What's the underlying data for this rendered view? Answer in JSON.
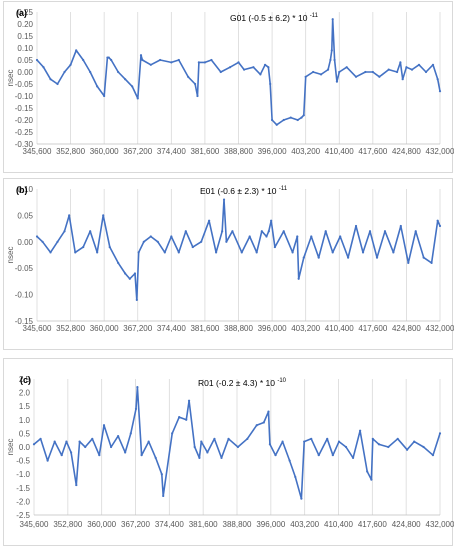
{
  "chart_data": [
    {
      "type": "line",
      "panel_label": "(a)",
      "annotation": {
        "name": "G01",
        "value": "(-0.5 ± 6.2) * 10",
        "exponent": "-11"
      },
      "ylabel": "nsec",
      "ylim": [
        -0.3,
        0.25
      ],
      "yticks": [
        "0.25",
        "0.20",
        "0.15",
        "0.10",
        "0.05",
        "0.00",
        "-0.05",
        "-0.10",
        "-0.15",
        "-0.20",
        "-0.25",
        "-0.30"
      ],
      "ytick_values": [
        0.25,
        0.2,
        0.15,
        0.1,
        0.05,
        0.0,
        -0.05,
        -0.1,
        -0.15,
        -0.2,
        -0.25,
        -0.3
      ],
      "xlim": [
        345600,
        432000
      ],
      "xticks": [
        "345,600",
        "352,800",
        "360,000",
        "367,200",
        "374,400",
        "381,600",
        "388,800",
        "396,000",
        "403,200",
        "410,400",
        "417,600",
        "424,800",
        "432,000"
      ],
      "xtick_values": [
        345600,
        352800,
        360000,
        367200,
        374400,
        381600,
        388800,
        396000,
        403200,
        410400,
        417600,
        424800,
        432000
      ],
      "grid": "vertical",
      "color": "#4472c4",
      "x": [
        345600,
        347000,
        348500,
        350000,
        351500,
        352800,
        354000,
        355500,
        357000,
        358500,
        360000,
        360700,
        361000,
        361500,
        363000,
        364500,
        366000,
        367200,
        367900,
        368200,
        370000,
        372000,
        374400,
        376000,
        378000,
        379500,
        380000,
        380300,
        381600,
        383000,
        385000,
        387000,
        388800,
        390000,
        392000,
        393500,
        394500,
        395200,
        395600,
        396000,
        397000,
        398500,
        400000,
        401500,
        402300,
        402800,
        403200,
        404800,
        406500,
        408000,
        408500,
        408800,
        409000,
        409400,
        409900,
        410400,
        412000,
        414000,
        416000,
        417600,
        419000,
        421000,
        422800,
        423500,
        424000,
        424800,
        426000,
        427500,
        429000,
        430500,
        431500,
        432000
      ],
      "y": [
        0.05,
        0.02,
        -0.03,
        -0.05,
        0.0,
        0.03,
        0.09,
        0.05,
        0.0,
        -0.06,
        -0.1,
        0.06,
        0.06,
        0.05,
        0.0,
        -0.03,
        -0.06,
        -0.11,
        0.07,
        0.05,
        0.03,
        0.05,
        0.04,
        0.05,
        -0.02,
        -0.05,
        -0.1,
        0.04,
        0.04,
        0.05,
        0.0,
        0.02,
        0.04,
        0.01,
        0.02,
        -0.01,
        0.03,
        0.02,
        -0.05,
        -0.2,
        -0.22,
        -0.2,
        -0.19,
        -0.2,
        -0.19,
        -0.18,
        -0.02,
        0.0,
        -0.01,
        0.01,
        0.05,
        0.09,
        0.22,
        0.05,
        -0.04,
        0.0,
        0.02,
        -0.02,
        0.0,
        0.0,
        -0.02,
        0.01,
        0.0,
        0.04,
        -0.03,
        0.02,
        0.01,
        0.03,
        0.0,
        0.03,
        -0.03,
        -0.08
      ]
    },
    {
      "type": "line",
      "panel_label": "(b)",
      "annotation": {
        "name": "E01",
        "value": "(-0.6 ± 2.3) * 10",
        "exponent": "-11"
      },
      "ylabel": "nsec",
      "ylim": [
        -0.15,
        0.1
      ],
      "yticks": [
        "0.10",
        "0.05",
        "0.00",
        "-0.05",
        "-0.10",
        "-0.15"
      ],
      "ytick_values": [
        0.1,
        0.05,
        0.0,
        -0.05,
        -0.1,
        -0.15
      ],
      "xlim": [
        345600,
        432000
      ],
      "xticks": [
        "345,600",
        "352,800",
        "360,000",
        "367,200",
        "374,400",
        "381,600",
        "388,800",
        "396,000",
        "403,200",
        "410,400",
        "417,600",
        "424,800",
        "432,000"
      ],
      "xtick_values": [
        345600,
        352800,
        360000,
        367200,
        374400,
        381600,
        388800,
        396000,
        403200,
        410400,
        417600,
        424800,
        432000
      ],
      "grid": "vertical",
      "color": "#4472c4",
      "x": [
        345600,
        346800,
        348500,
        350000,
        351500,
        352500,
        353800,
        355500,
        357000,
        358500,
        359800,
        361200,
        363000,
        364500,
        365500,
        366600,
        367000,
        367400,
        368500,
        370000,
        371500,
        373000,
        374400,
        376000,
        377500,
        379000,
        380800,
        382500,
        384000,
        385300,
        385700,
        386200,
        387500,
        389500,
        391200,
        392700,
        393800,
        394800,
        395300,
        395800,
        396600,
        398500,
        400400,
        401400,
        401700,
        402800,
        404400,
        406000,
        407500,
        409000,
        410600,
        412300,
        414000,
        415500,
        417000,
        418500,
        420200,
        422000,
        423600,
        425200,
        426800,
        428500,
        430200,
        431500,
        432000
      ],
      "y": [
        0.01,
        0.0,
        -0.02,
        0.0,
        0.02,
        0.05,
        -0.02,
        -0.01,
        0.02,
        -0.02,
        0.05,
        -0.01,
        -0.04,
        -0.06,
        -0.07,
        -0.06,
        -0.11,
        -0.02,
        0.0,
        0.01,
        0.0,
        -0.02,
        0.01,
        -0.02,
        0.02,
        -0.01,
        0.0,
        0.04,
        -0.02,
        0.02,
        0.08,
        0.0,
        0.02,
        -0.02,
        0.01,
        -0.02,
        0.02,
        0.01,
        0.02,
        0.04,
        -0.01,
        0.02,
        -0.02,
        0.01,
        -0.07,
        -0.03,
        0.01,
        -0.03,
        0.02,
        -0.02,
        0.01,
        -0.03,
        0.03,
        -0.02,
        0.02,
        -0.03,
        0.02,
        -0.02,
        0.03,
        -0.04,
        0.02,
        -0.03,
        -0.04,
        0.04,
        0.03
      ]
    },
    {
      "type": "line",
      "panel_label": "(c)",
      "annotation": {
        "name": "R01",
        "value": "(-0.2 ± 4.3) * 10",
        "exponent": "-10"
      },
      "ylabel": "nsec",
      "ylim": [
        -2.5,
        2.5
      ],
      "yticks": [
        "2.5",
        "2.0",
        "1.5",
        "1.0",
        "0.5",
        "0.0",
        "-0.5",
        "-1.0",
        "-1.5",
        "-2.0",
        "-2.5"
      ],
      "ytick_values": [
        2.5,
        2.0,
        1.5,
        1.0,
        0.5,
        0.0,
        -0.5,
        -1.0,
        -1.5,
        -2.0,
        -2.5
      ],
      "xlim": [
        345600,
        432000
      ],
      "xticks": [
        "345,600",
        "352,800",
        "360,000",
        "367,200",
        "374,400",
        "381,600",
        "388,800",
        "396,000",
        "403,200",
        "410,400",
        "417,600",
        "424,800",
        "432,000"
      ],
      "xtick_values": [
        345600,
        352800,
        360000,
        367200,
        374400,
        381600,
        388800,
        396000,
        403200,
        410400,
        417600,
        424800,
        432000
      ],
      "grid": "vertical",
      "color": "#4472c4",
      "x": [
        345600,
        347000,
        348500,
        350000,
        351500,
        352500,
        353500,
        354600,
        355300,
        356500,
        358000,
        359500,
        360500,
        362000,
        363500,
        365000,
        366200,
        367300,
        367600,
        368500,
        370000,
        371500,
        372800,
        373100,
        375000,
        376500,
        378000,
        378600,
        379800,
        380800,
        381200,
        382500,
        384000,
        385500,
        387000,
        389000,
        391000,
        393000,
        394500,
        395500,
        395800,
        397000,
        398500,
        400000,
        401200,
        402500,
        403100,
        404600,
        406200,
        408000,
        409200,
        410500,
        412000,
        413500,
        415000,
        416500,
        417400,
        417700,
        419000,
        421000,
        423000,
        425000,
        426500,
        428500,
        430500,
        432000
      ],
      "y": [
        0.1,
        0.3,
        -0.5,
        0.2,
        -0.3,
        0.2,
        -0.2,
        -1.4,
        0.2,
        0.0,
        0.3,
        -0.3,
        0.8,
        0.0,
        0.4,
        -0.2,
        0.5,
        1.4,
        2.2,
        -0.3,
        0.2,
        -0.4,
        -1.0,
        -1.8,
        0.5,
        1.1,
        1.0,
        1.7,
        0.0,
        -0.4,
        0.2,
        -0.2,
        0.3,
        -0.4,
        0.3,
        0.0,
        0.3,
        0.8,
        0.9,
        1.3,
        0.1,
        -0.3,
        0.2,
        -0.5,
        -1.1,
        -1.9,
        0.2,
        0.3,
        -0.3,
        0.3,
        -0.3,
        0.2,
        0.0,
        -0.4,
        0.6,
        -0.9,
        -1.2,
        0.3,
        0.1,
        0.0,
        0.3,
        -0.1,
        0.2,
        0.0,
        -0.3,
        0.5
      ]
    }
  ]
}
